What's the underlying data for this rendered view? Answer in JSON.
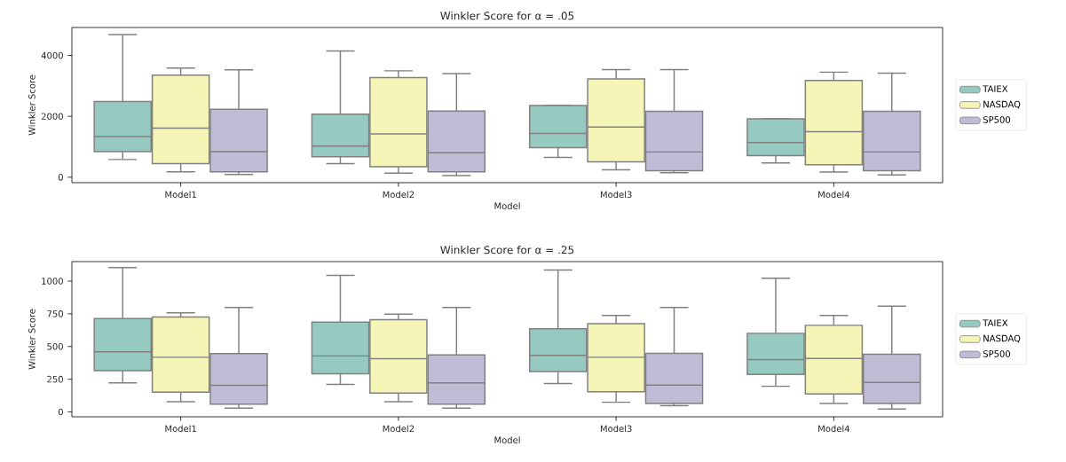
{
  "chart_data": [
    {
      "type": "box",
      "title": "Winkler Score for α = .05",
      "xlabel": "Model",
      "ylabel": "Winkler Score",
      "categories": [
        "Model1",
        "Model2",
        "Model3",
        "Model4"
      ],
      "ylim": [
        -179,
        4917
      ],
      "yticks": [
        0,
        2000,
        4000
      ],
      "legend": "right",
      "series": [
        {
          "name": "TAIEX",
          "color": "#96cac0",
          "boxes": [
            {
              "low": 582,
              "q1": 840,
              "median": 1333,
              "q3": 2486,
              "high": 4682
            },
            {
              "low": 448,
              "q1": 672,
              "median": 1019,
              "q3": 2072,
              "high": 4144
            },
            {
              "low": 650,
              "q1": 974,
              "median": 1434,
              "q3": 2352,
              "high": 2352
            },
            {
              "low": 470,
              "q1": 709,
              "median": 1136,
              "q3": 1915,
              "high": 1915
            }
          ]
        },
        {
          "name": "NASDAQ",
          "color": "#f5f5b8",
          "boxes": [
            {
              "low": 179,
              "q1": 448,
              "median": 1613,
              "q3": 3349,
              "high": 3584
            },
            {
              "low": 134,
              "q1": 347,
              "median": 1422,
              "q3": 3270,
              "high": 3494
            },
            {
              "low": 246,
              "q1": 504,
              "median": 1646,
              "q3": 3226,
              "high": 3534
            },
            {
              "low": 168,
              "q1": 408,
              "median": 1495,
              "q3": 3174,
              "high": 3450
            }
          ]
        },
        {
          "name": "SP500",
          "color": "#c0bcd6",
          "boxes": [
            {
              "low": 90,
              "q1": 179,
              "median": 840,
              "q3": 2229,
              "high": 3528
            },
            {
              "low": 56,
              "q1": 179,
              "median": 806,
              "q3": 2173,
              "high": 3405
            },
            {
              "low": 146,
              "q1": 213,
              "median": 829,
              "q3": 2162,
              "high": 3534
            },
            {
              "low": 78,
              "q1": 213,
              "median": 829,
              "q3": 2162,
              "high": 3416
            }
          ]
        }
      ]
    },
    {
      "type": "box",
      "title": "Winkler Score for α = .25",
      "xlabel": "Model",
      "ylabel": "Winkler Score",
      "categories": [
        "Model1",
        "Model2",
        "Model3",
        "Model4"
      ],
      "ylim": [
        -37,
        1149
      ],
      "yticks": [
        0,
        250,
        500,
        750,
        1000
      ],
      "legend": "right",
      "series": [
        {
          "name": "TAIEX",
          "color": "#96cac0",
          "boxes": [
            {
              "low": 222,
              "q1": 316,
              "median": 460,
              "q3": 713,
              "high": 1104
            },
            {
              "low": 211,
              "q1": 292,
              "median": 428,
              "q3": 687,
              "high": 1044
            },
            {
              "low": 217,
              "q1": 309,
              "median": 432,
              "q3": 635,
              "high": 1085
            },
            {
              "low": 196,
              "q1": 287,
              "median": 400,
              "q3": 601,
              "high": 1022
            }
          ]
        },
        {
          "name": "NASDAQ",
          "color": "#f5f5b8",
          "boxes": [
            {
              "low": 78,
              "q1": 151,
              "median": 418,
              "q3": 726,
              "high": 757
            },
            {
              "low": 78,
              "q1": 144,
              "median": 407,
              "q3": 705,
              "high": 747
            },
            {
              "low": 74,
              "q1": 154,
              "median": 418,
              "q3": 674,
              "high": 737
            },
            {
              "low": 65,
              "q1": 137,
              "median": 409,
              "q3": 662,
              "high": 737
            }
          ]
        },
        {
          "name": "SP500",
          "color": "#c0bcd6",
          "boxes": [
            {
              "low": 29,
              "q1": 60,
              "median": 204,
              "q3": 446,
              "high": 799
            },
            {
              "low": 29,
              "q1": 60,
              "median": 222,
              "q3": 436,
              "high": 799
            },
            {
              "low": 47,
              "q1": 65,
              "median": 205,
              "q3": 447,
              "high": 798
            },
            {
              "low": 22,
              "q1": 65,
              "median": 226,
              "q3": 441,
              "high": 809
            }
          ]
        }
      ]
    }
  ]
}
